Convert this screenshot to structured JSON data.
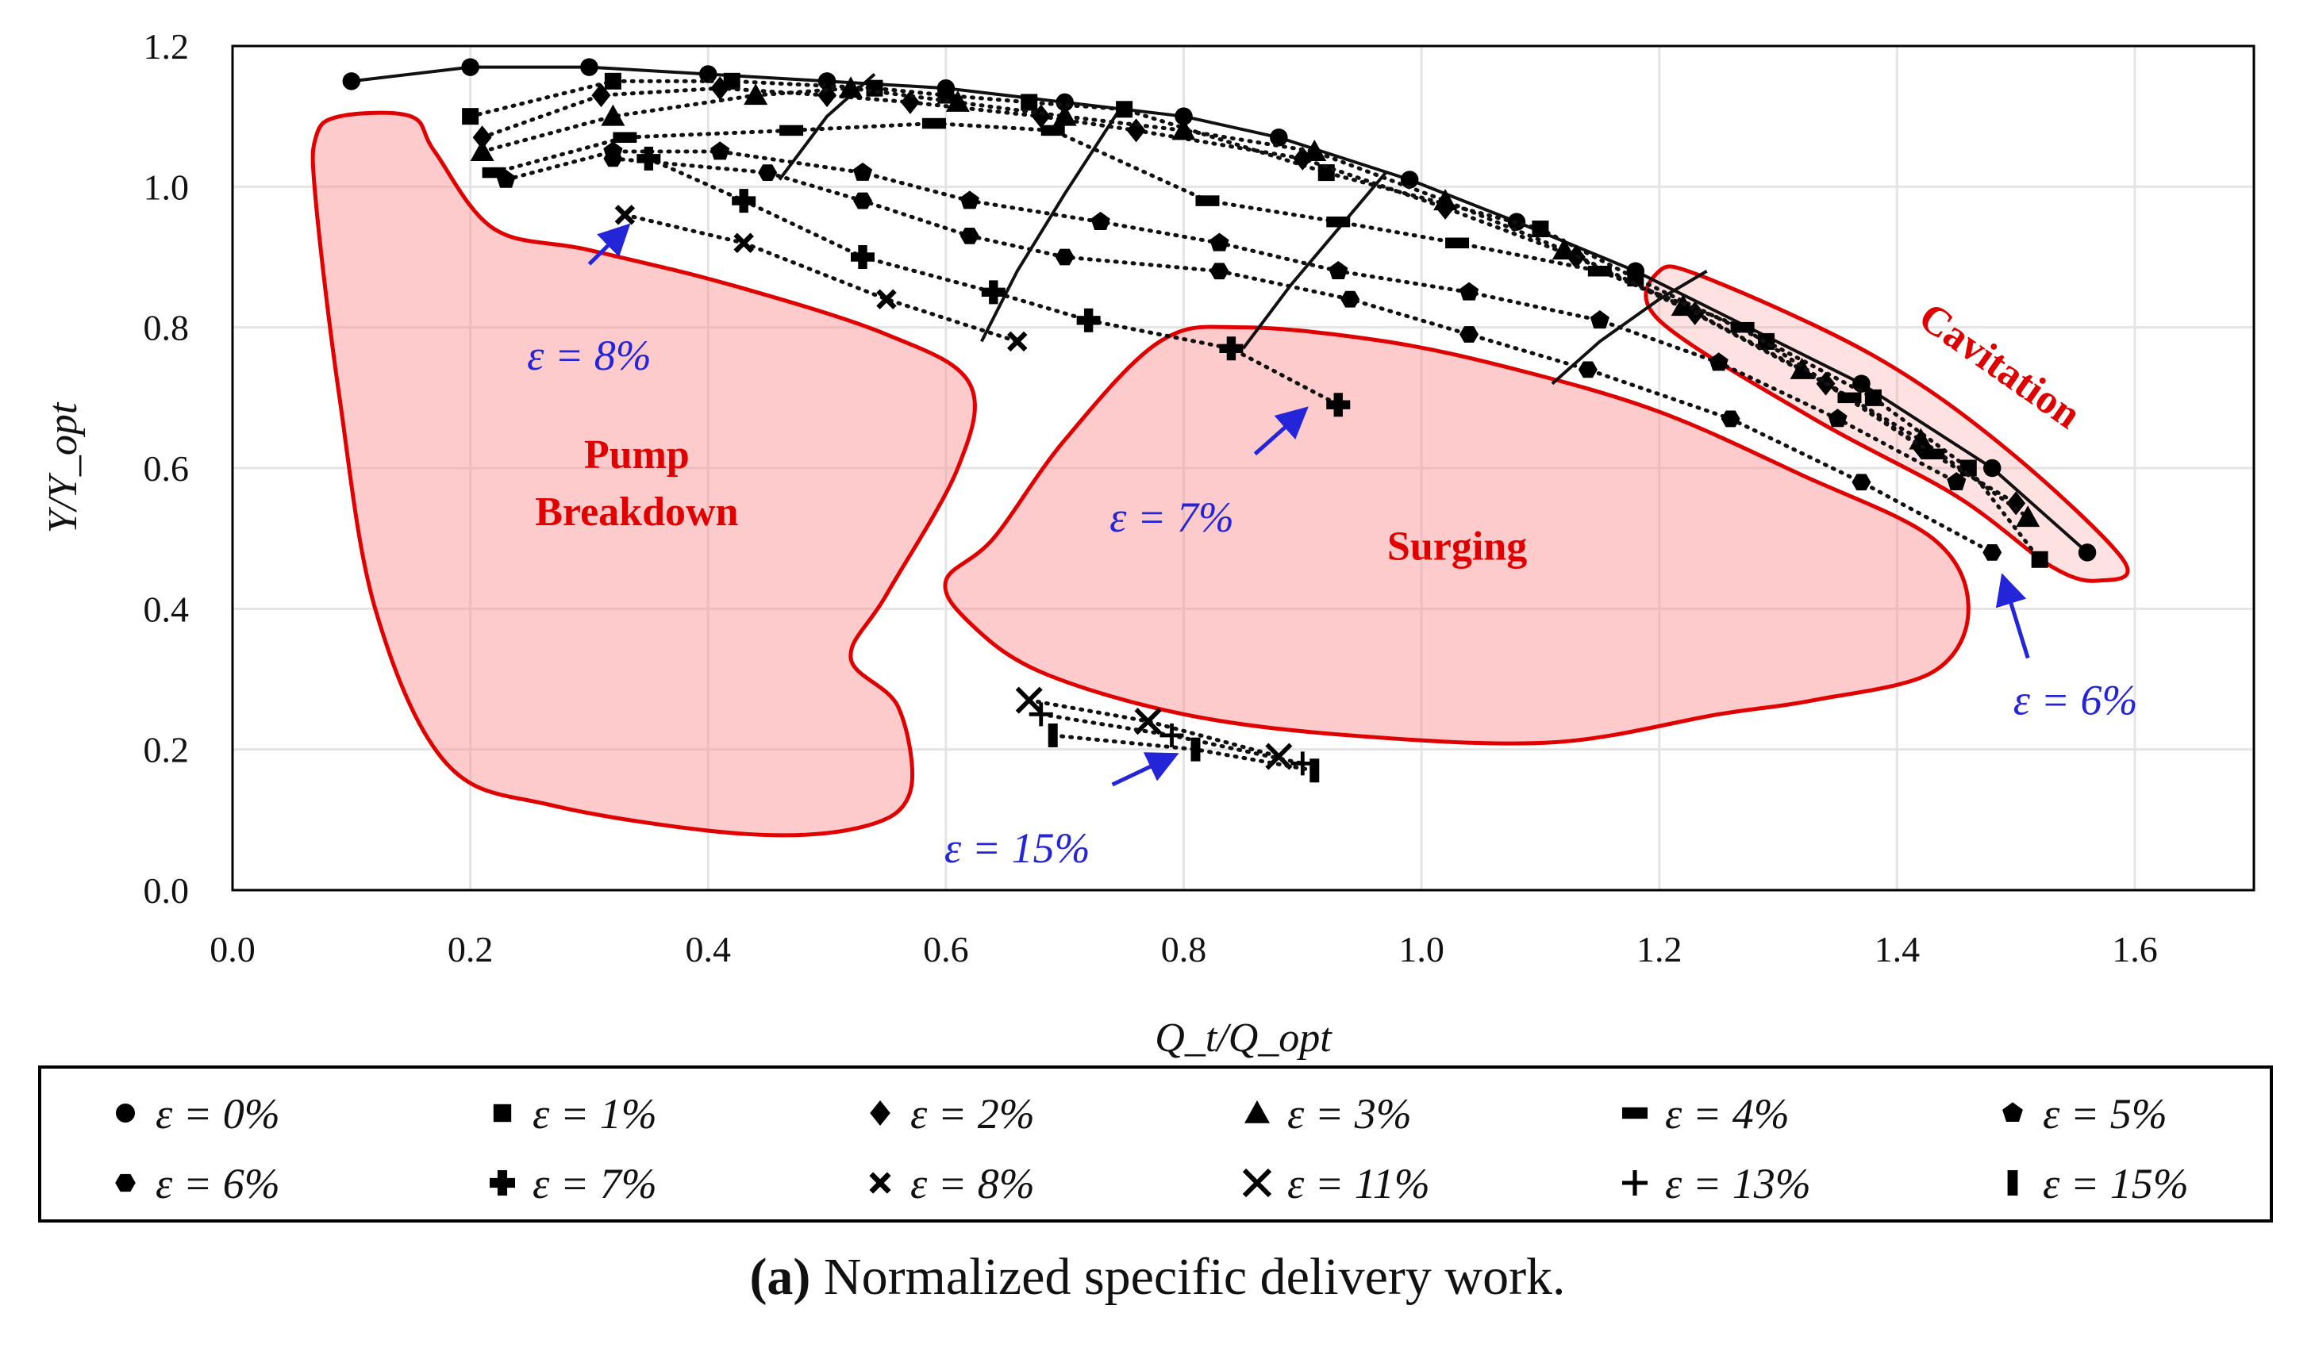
{
  "chart_data": {
    "type": "scatter",
    "title": "",
    "xlabel": "Q_t/Q_opt",
    "ylabel": "Υ/Υ_opt",
    "xlim": [
      0.0,
      1.7
    ],
    "ylim": [
      0.0,
      1.2
    ],
    "xticks": [
      "0.0",
      "0.2",
      "0.4",
      "0.6",
      "0.8",
      "1.0",
      "1.2",
      "1.4",
      "1.6"
    ],
    "yticks": [
      "0.0",
      "0.2",
      "0.4",
      "0.6",
      "0.8",
      "1.0",
      "1.2"
    ],
    "grid": true,
    "legend_position": "below",
    "series": [
      {
        "name": "ε = 0%",
        "marker": "circle",
        "line": "solid",
        "x": [
          0.1,
          0.2,
          0.3,
          0.4,
          0.5,
          0.6,
          0.7,
          0.8,
          0.88,
          0.99,
          1.08,
          1.18,
          1.37,
          1.48,
          1.56
        ],
        "y": [
          1.15,
          1.17,
          1.17,
          1.16,
          1.15,
          1.14,
          1.12,
          1.1,
          1.07,
          1.01,
          0.95,
          0.88,
          0.72,
          0.6,
          0.48
        ]
      },
      {
        "name": "ε = 1%",
        "marker": "square",
        "line": "dotted",
        "x": [
          0.2,
          0.32,
          0.42,
          0.54,
          0.6,
          0.67,
          0.75,
          0.92,
          1.1,
          1.18,
          1.29,
          1.38,
          1.46,
          1.52
        ],
        "y": [
          1.1,
          1.15,
          1.15,
          1.14,
          1.13,
          1.12,
          1.11,
          1.02,
          0.94,
          0.87,
          0.78,
          0.7,
          0.6,
          0.47
        ]
      },
      {
        "name": "ε = 2%",
        "marker": "diamond",
        "line": "dotted",
        "x": [
          0.21,
          0.31,
          0.41,
          0.5,
          0.57,
          0.68,
          0.76,
          0.9,
          1.02,
          1.13,
          1.23,
          1.34,
          1.42,
          1.5
        ],
        "y": [
          1.07,
          1.13,
          1.14,
          1.13,
          1.12,
          1.1,
          1.08,
          1.04,
          0.97,
          0.9,
          0.82,
          0.72,
          0.63,
          0.55
        ]
      },
      {
        "name": "ε = 3%",
        "marker": "triangle",
        "line": "dotted",
        "x": [
          0.21,
          0.32,
          0.44,
          0.52,
          0.61,
          0.7,
          0.8,
          0.91,
          1.02,
          1.12,
          1.22,
          1.32,
          1.42,
          1.51
        ],
        "y": [
          1.05,
          1.1,
          1.13,
          1.14,
          1.12,
          1.1,
          1.08,
          1.05,
          0.98,
          0.91,
          0.83,
          0.74,
          0.64,
          0.53
        ]
      },
      {
        "name": "ε = 4%",
        "marker": "dash",
        "line": "dotted",
        "x": [
          0.22,
          0.33,
          0.47,
          0.59,
          0.69,
          0.82,
          0.93,
          1.03,
          1.15,
          1.27,
          1.36,
          1.43
        ],
        "y": [
          1.02,
          1.07,
          1.08,
          1.09,
          1.08,
          0.98,
          0.95,
          0.92,
          0.88,
          0.8,
          0.7,
          0.62
        ]
      },
      {
        "name": "ε = 5%",
        "marker": "pentagon",
        "line": "dotted",
        "x": [
          0.23,
          0.32,
          0.41,
          0.53,
          0.62,
          0.73,
          0.83,
          0.93,
          1.04,
          1.15,
          1.25,
          1.35,
          1.45
        ],
        "y": [
          1.01,
          1.05,
          1.05,
          1.02,
          0.98,
          0.95,
          0.92,
          0.88,
          0.85,
          0.81,
          0.75,
          0.67,
          0.58
        ]
      },
      {
        "name": "ε = 6%",
        "marker": "hexagon",
        "line": "dotted",
        "x": [
          0.32,
          0.45,
          0.53,
          0.62,
          0.7,
          0.83,
          0.94,
          1.04,
          1.14,
          1.26,
          1.37,
          1.48
        ],
        "y": [
          1.04,
          1.02,
          0.98,
          0.93,
          0.9,
          0.88,
          0.84,
          0.79,
          0.74,
          0.67,
          0.58,
          0.48
        ]
      },
      {
        "name": "ε = 7%",
        "marker": "plus-bold",
        "line": "dotted",
        "x": [
          0.35,
          0.43,
          0.53,
          0.64,
          0.72,
          0.84,
          0.93
        ],
        "y": [
          1.04,
          0.98,
          0.9,
          0.85,
          0.81,
          0.77,
          0.69
        ]
      },
      {
        "name": "ε = 8%",
        "marker": "x-small",
        "line": "dotted",
        "x": [
          0.33,
          0.43,
          0.55,
          0.66
        ],
        "y": [
          0.96,
          0.92,
          0.84,
          0.78
        ]
      },
      {
        "name": "ε = 11%",
        "marker": "x-large",
        "line": "dotted",
        "x": [
          0.67,
          0.77,
          0.88
        ],
        "y": [
          0.27,
          0.24,
          0.19
        ]
      },
      {
        "name": "ε = 13%",
        "marker": "plus",
        "line": "dotted",
        "x": [
          0.68,
          0.79,
          0.9
        ],
        "y": [
          0.25,
          0.22,
          0.18
        ]
      },
      {
        "name": "ε = 15%",
        "marker": "bar",
        "line": "dotted",
        "x": [
          0.69,
          0.81,
          0.91
        ],
        "y": [
          0.22,
          0.2,
          0.17
        ]
      }
    ],
    "locus_lines": [
      {
        "name": "locus-a",
        "x": [
          0.46,
          0.5,
          0.54
        ],
        "y": [
          1.01,
          1.1,
          1.16
        ]
      },
      {
        "name": "locus-b",
        "x": [
          0.63,
          0.66,
          0.7,
          0.75
        ],
        "y": [
          0.78,
          0.88,
          0.99,
          1.12
        ]
      },
      {
        "name": "locus-c",
        "x": [
          0.85,
          0.89,
          0.93,
          0.97
        ],
        "y": [
          0.77,
          0.86,
          0.94,
          1.02
        ]
      },
      {
        "name": "locus-d",
        "x": [
          1.11,
          1.15,
          1.2,
          1.24
        ],
        "y": [
          0.72,
          0.78,
          0.84,
          0.88
        ]
      }
    ],
    "regions": [
      {
        "name": "pump-breakdown",
        "label": [
          "Pump",
          "Breakdown"
        ],
        "outline": [
          [
            0.07,
            1.07
          ],
          [
            0.09,
            1.1
          ],
          [
            0.15,
            1.1
          ],
          [
            0.17,
            1.05
          ],
          [
            0.22,
            0.94
          ],
          [
            0.3,
            0.91
          ],
          [
            0.42,
            0.86
          ],
          [
            0.55,
            0.79
          ],
          [
            0.62,
            0.72
          ],
          [
            0.61,
            0.6
          ],
          [
            0.55,
            0.42
          ],
          [
            0.52,
            0.33
          ],
          [
            0.56,
            0.26
          ],
          [
            0.57,
            0.14
          ],
          [
            0.53,
            0.09
          ],
          [
            0.43,
            0.08
          ],
          [
            0.27,
            0.12
          ],
          [
            0.18,
            0.18
          ],
          [
            0.12,
            0.4
          ],
          [
            0.09,
            0.7
          ],
          [
            0.07,
            0.98
          ]
        ],
        "label_at": [
          0.34,
          0.6
        ]
      },
      {
        "name": "surging",
        "label": [
          "Surging"
        ],
        "outline": [
          [
            0.64,
            0.5
          ],
          [
            0.7,
            0.64
          ],
          [
            0.78,
            0.78
          ],
          [
            0.85,
            0.8
          ],
          [
            0.97,
            0.78
          ],
          [
            1.08,
            0.74
          ],
          [
            1.2,
            0.68
          ],
          [
            1.32,
            0.59
          ],
          [
            1.43,
            0.5
          ],
          [
            1.46,
            0.4
          ],
          [
            1.43,
            0.31
          ],
          [
            1.33,
            0.27
          ],
          [
            1.25,
            0.25
          ],
          [
            1.11,
            0.21
          ],
          [
            0.94,
            0.22
          ],
          [
            0.8,
            0.25
          ],
          [
            0.68,
            0.31
          ],
          [
            0.62,
            0.38
          ],
          [
            0.6,
            0.44
          ]
        ],
        "label_at": [
          1.03,
          0.47
        ]
      },
      {
        "name": "cavitation",
        "label": [
          "Cavitation"
        ],
        "outline": [
          [
            1.2,
            0.88
          ],
          [
            1.24,
            0.87
          ],
          [
            1.38,
            0.76
          ],
          [
            1.49,
            0.63
          ],
          [
            1.59,
            0.47
          ],
          [
            1.57,
            0.44
          ],
          [
            1.53,
            0.46
          ],
          [
            1.45,
            0.56
          ],
          [
            1.33,
            0.67
          ],
          [
            1.2,
            0.81
          ]
        ],
        "label_at": [
          1.48,
          0.73
        ]
      }
    ],
    "annotations": [
      {
        "text": "ε = 8%",
        "arrow_from": [
          0.3,
          0.89
        ],
        "arrow_to": [
          0.33,
          0.94
        ],
        "text_at": [
          0.3,
          0.76
        ]
      },
      {
        "text": "ε = 7%",
        "arrow_from": [
          0.86,
          0.62
        ],
        "arrow_to": [
          0.9,
          0.68
        ],
        "text_at": [
          0.79,
          0.53
        ]
      },
      {
        "text": "ε = 6%",
        "arrow_from": [
          1.51,
          0.33
        ],
        "arrow_to": [
          1.49,
          0.44
        ],
        "text_at": [
          1.55,
          0.27
        ]
      },
      {
        "text": "ε = 15%",
        "arrow_from": [
          0.74,
          0.15
        ],
        "arrow_to": [
          0.79,
          0.19
        ],
        "text_at": [
          0.66,
          0.06
        ]
      }
    ]
  },
  "caption": {
    "label": "(a)",
    "text": "Normalized specific delivery work."
  }
}
